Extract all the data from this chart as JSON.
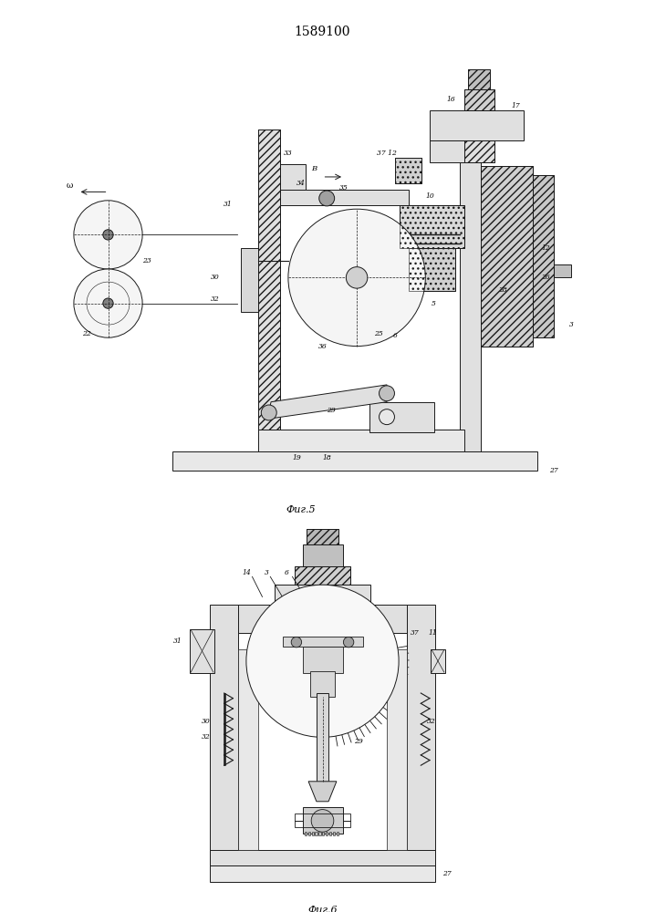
{
  "title": "1589100",
  "bg_color": "#ffffff",
  "fig1_caption": "Фиг.5",
  "fig2_caption": "Фиг.6",
  "line_color": "#1a1a1a",
  "line_width": 0.7
}
